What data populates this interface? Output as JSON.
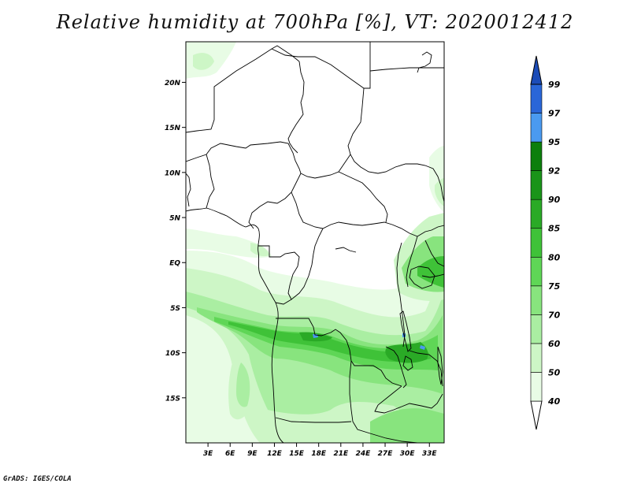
{
  "title": "Relative humidity at 700hPa [%], VT: 2020012412",
  "credit": "GrADS: IGES/COLA",
  "map": {
    "lat_labels": [
      "20N",
      "15N",
      "10N",
      "5N",
      "EQ",
      "5S",
      "10S",
      "15S"
    ],
    "lat_values": [
      20,
      15,
      10,
      5,
      0,
      -5,
      -10,
      -15
    ],
    "lon_labels": [
      "3E",
      "6E",
      "9E",
      "12E",
      "15E",
      "18E",
      "21E",
      "24E",
      "27E",
      "30E",
      "33E"
    ],
    "lon_values": [
      3,
      6,
      9,
      12,
      15,
      18,
      21,
      24,
      27,
      30,
      33
    ],
    "lon_range": [
      0,
      35
    ],
    "lat_range": [
      -20,
      24.5
    ]
  },
  "colorbar": {
    "labels": [
      "40",
      "50",
      "60",
      "70",
      "75",
      "80",
      "85",
      "90",
      "92",
      "95",
      "97",
      "99"
    ],
    "colors": [
      "#ffffff",
      "#e8fce5",
      "#cdf6c6",
      "#aaeea2",
      "#88e47e",
      "#5fd656",
      "#3fc238",
      "#2aaa26",
      "#1a9419",
      "#0c7f0c",
      "#4a9af0",
      "#2a66d8",
      "#1c4cb8"
    ]
  }
}
